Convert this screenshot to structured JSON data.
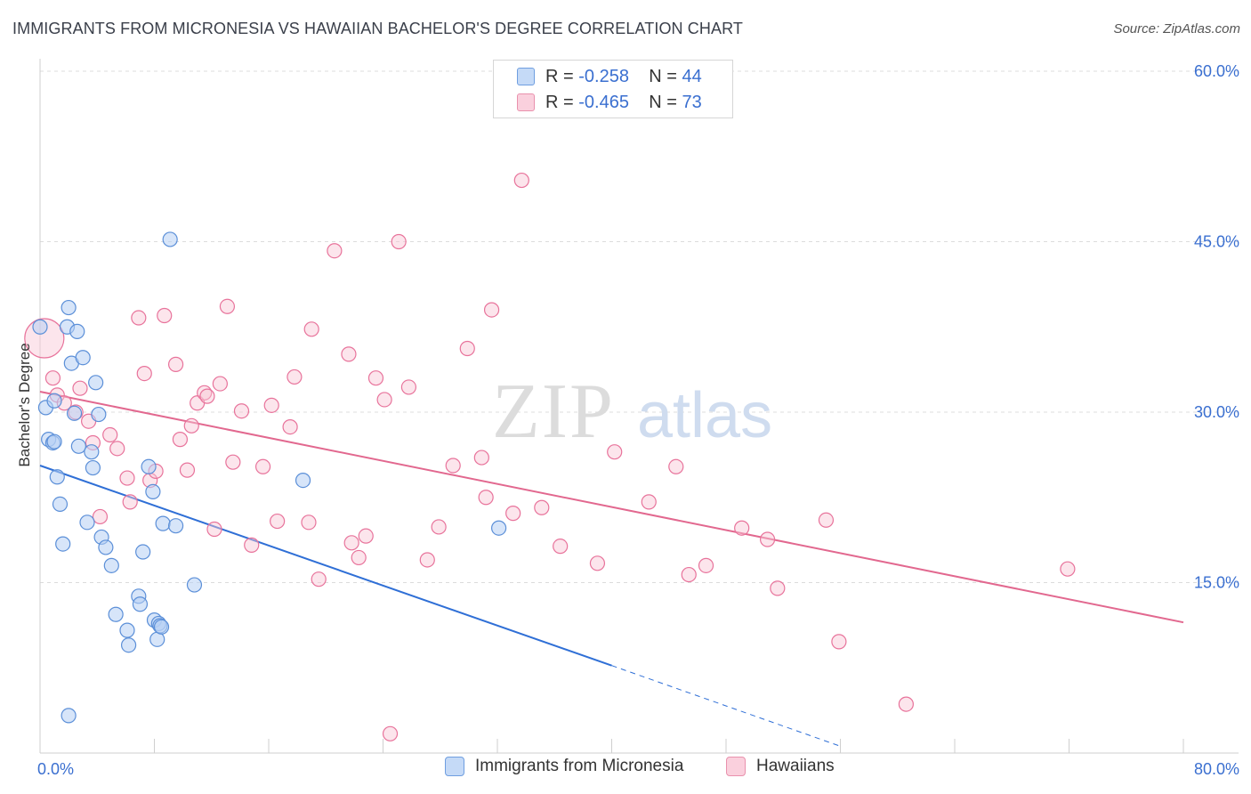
{
  "header": {
    "title": "IMMIGRANTS FROM MICRONESIA VS HAWAIIAN BACHELOR'S DEGREE CORRELATION CHART",
    "source": "Source: ZipAtlas.com"
  },
  "watermark": {
    "zip": "ZIP",
    "atlas": "atlas"
  },
  "legend": {
    "rows": [
      {
        "r_label": "R =",
        "r_value": "-0.258",
        "n_label": "N =",
        "n_value": "44",
        "color": "#a9c7f3"
      },
      {
        "r_label": "R =",
        "r_value": "-0.465",
        "n_label": "N =",
        "n_value": "73",
        "color": "#f6b5c9"
      }
    ]
  },
  "bottom_legend": {
    "series1": "Immigrants from Micronesia",
    "series2": "Hawaiians"
  },
  "chart_data": {
    "type": "scatter",
    "title": "IMMIGRANTS FROM MICRONESIA VS HAWAIIAN BACHELOR'S DEGREE CORRELATION CHART",
    "xlabel": "",
    "ylabel": "Bachelor's Degree",
    "xlim": [
      0,
      80
    ],
    "ylim": [
      0,
      60
    ],
    "x_tick_labels": [
      "0.0%",
      "80.0%"
    ],
    "y_tick_labels": [
      "15.0%",
      "30.0%",
      "45.0%",
      "60.0%"
    ],
    "y_ticks": [
      15,
      30,
      45,
      60
    ],
    "grid": true,
    "colors": {
      "blue": "#5b8fd8",
      "blue_fill": "#b7d0f4",
      "pink": "#e8739b",
      "pink_fill": "#f8c5d5",
      "blue_line": "#2f6fd6",
      "pink_line": "#e2688f",
      "axis_text": "#3a6fd0"
    },
    "series": [
      {
        "name": "Immigrants from Micronesia",
        "color": "#5b8fd8",
        "points": [
          [
            0.0,
            37.5
          ],
          [
            0.4,
            30.4
          ],
          [
            0.6,
            27.6
          ],
          [
            0.9,
            27.3
          ],
          [
            1.0,
            31.0
          ],
          [
            1.2,
            24.3
          ],
          [
            1.4,
            21.9
          ],
          [
            1.6,
            18.4
          ],
          [
            1.9,
            37.5
          ],
          [
            2.0,
            39.2
          ],
          [
            2.2,
            34.3
          ],
          [
            2.4,
            29.9
          ],
          [
            2.6,
            37.1
          ],
          [
            2.7,
            27.0
          ],
          [
            3.0,
            34.8
          ],
          [
            3.3,
            20.3
          ],
          [
            3.6,
            26.5
          ],
          [
            3.7,
            25.1
          ],
          [
            3.9,
            32.6
          ],
          [
            4.1,
            29.8
          ],
          [
            4.3,
            19.0
          ],
          [
            4.6,
            18.1
          ],
          [
            5.0,
            16.5
          ],
          [
            5.3,
            12.2
          ],
          [
            6.1,
            10.8
          ],
          [
            6.2,
            9.5
          ],
          [
            6.9,
            13.8
          ],
          [
            7.0,
            13.1
          ],
          [
            7.2,
            17.7
          ],
          [
            7.6,
            25.2
          ],
          [
            7.9,
            23.0
          ],
          [
            8.0,
            11.7
          ],
          [
            8.2,
            10.0
          ],
          [
            8.3,
            11.4
          ],
          [
            8.4,
            11.2
          ],
          [
            8.5,
            11.1
          ],
          [
            8.6,
            20.2
          ],
          [
            9.1,
            45.2
          ],
          [
            9.5,
            20.0
          ],
          [
            10.8,
            14.8
          ],
          [
            18.4,
            24.0
          ],
          [
            32.1,
            19.8
          ],
          [
            1.0,
            27.4
          ],
          [
            2.0,
            3.3
          ]
        ]
      },
      {
        "name": "Hawaiians",
        "color": "#e8739b",
        "points": [
          [
            0.3,
            36.5
          ],
          [
            0.9,
            33.0
          ],
          [
            1.2,
            31.5
          ],
          [
            1.7,
            30.8
          ],
          [
            2.5,
            30.0
          ],
          [
            2.8,
            32.1
          ],
          [
            3.4,
            29.2
          ],
          [
            3.7,
            27.3
          ],
          [
            4.2,
            20.8
          ],
          [
            4.9,
            28.0
          ],
          [
            5.4,
            26.8
          ],
          [
            6.1,
            24.2
          ],
          [
            6.3,
            22.1
          ],
          [
            6.9,
            38.3
          ],
          [
            7.3,
            33.4
          ],
          [
            7.7,
            24.0
          ],
          [
            8.1,
            24.8
          ],
          [
            8.7,
            38.5
          ],
          [
            9.5,
            34.2
          ],
          [
            9.8,
            27.6
          ],
          [
            10.3,
            24.9
          ],
          [
            10.6,
            28.8
          ],
          [
            11.0,
            30.8
          ],
          [
            11.5,
            31.7
          ],
          [
            11.7,
            31.4
          ],
          [
            12.2,
            19.7
          ],
          [
            12.6,
            32.5
          ],
          [
            13.1,
            39.3
          ],
          [
            13.5,
            25.6
          ],
          [
            14.1,
            30.1
          ],
          [
            14.8,
            18.3
          ],
          [
            15.6,
            25.2
          ],
          [
            16.2,
            30.6
          ],
          [
            16.6,
            20.4
          ],
          [
            17.5,
            28.7
          ],
          [
            17.8,
            33.1
          ],
          [
            18.8,
            20.3
          ],
          [
            19.0,
            37.3
          ],
          [
            19.5,
            15.3
          ],
          [
            20.6,
            44.2
          ],
          [
            21.6,
            35.1
          ],
          [
            21.8,
            18.5
          ],
          [
            22.3,
            17.2
          ],
          [
            22.8,
            19.1
          ],
          [
            23.5,
            33.0
          ],
          [
            24.1,
            31.1
          ],
          [
            24.5,
            1.7
          ],
          [
            25.1,
            45.0
          ],
          [
            25.8,
            32.2
          ],
          [
            27.1,
            17.0
          ],
          [
            27.9,
            19.9
          ],
          [
            28.9,
            25.3
          ],
          [
            29.9,
            35.6
          ],
          [
            30.9,
            26.0
          ],
          [
            31.2,
            22.5
          ],
          [
            31.6,
            39.0
          ],
          [
            33.1,
            21.1
          ],
          [
            33.7,
            50.4
          ],
          [
            35.1,
            21.6
          ],
          [
            36.4,
            18.2
          ],
          [
            39.0,
            16.7
          ],
          [
            40.2,
            26.5
          ],
          [
            42.6,
            22.1
          ],
          [
            44.5,
            25.2
          ],
          [
            45.4,
            15.7
          ],
          [
            46.6,
            16.5
          ],
          [
            49.1,
            19.8
          ],
          [
            50.9,
            18.8
          ],
          [
            51.6,
            14.5
          ],
          [
            55.0,
            20.5
          ],
          [
            55.9,
            9.8
          ],
          [
            60.6,
            4.3
          ],
          [
            71.9,
            16.2
          ]
        ]
      }
    ],
    "trendlines": [
      {
        "series": "Immigrants from Micronesia",
        "x0": 0,
        "y0": 25.3,
        "x1": 40,
        "y1": 7.7,
        "dashed_to_x": 56,
        "dashed_to_y": 0.6
      },
      {
        "series": "Hawaiians",
        "x0": 0,
        "y0": 31.8,
        "x1": 80,
        "y1": 11.5
      }
    ]
  }
}
